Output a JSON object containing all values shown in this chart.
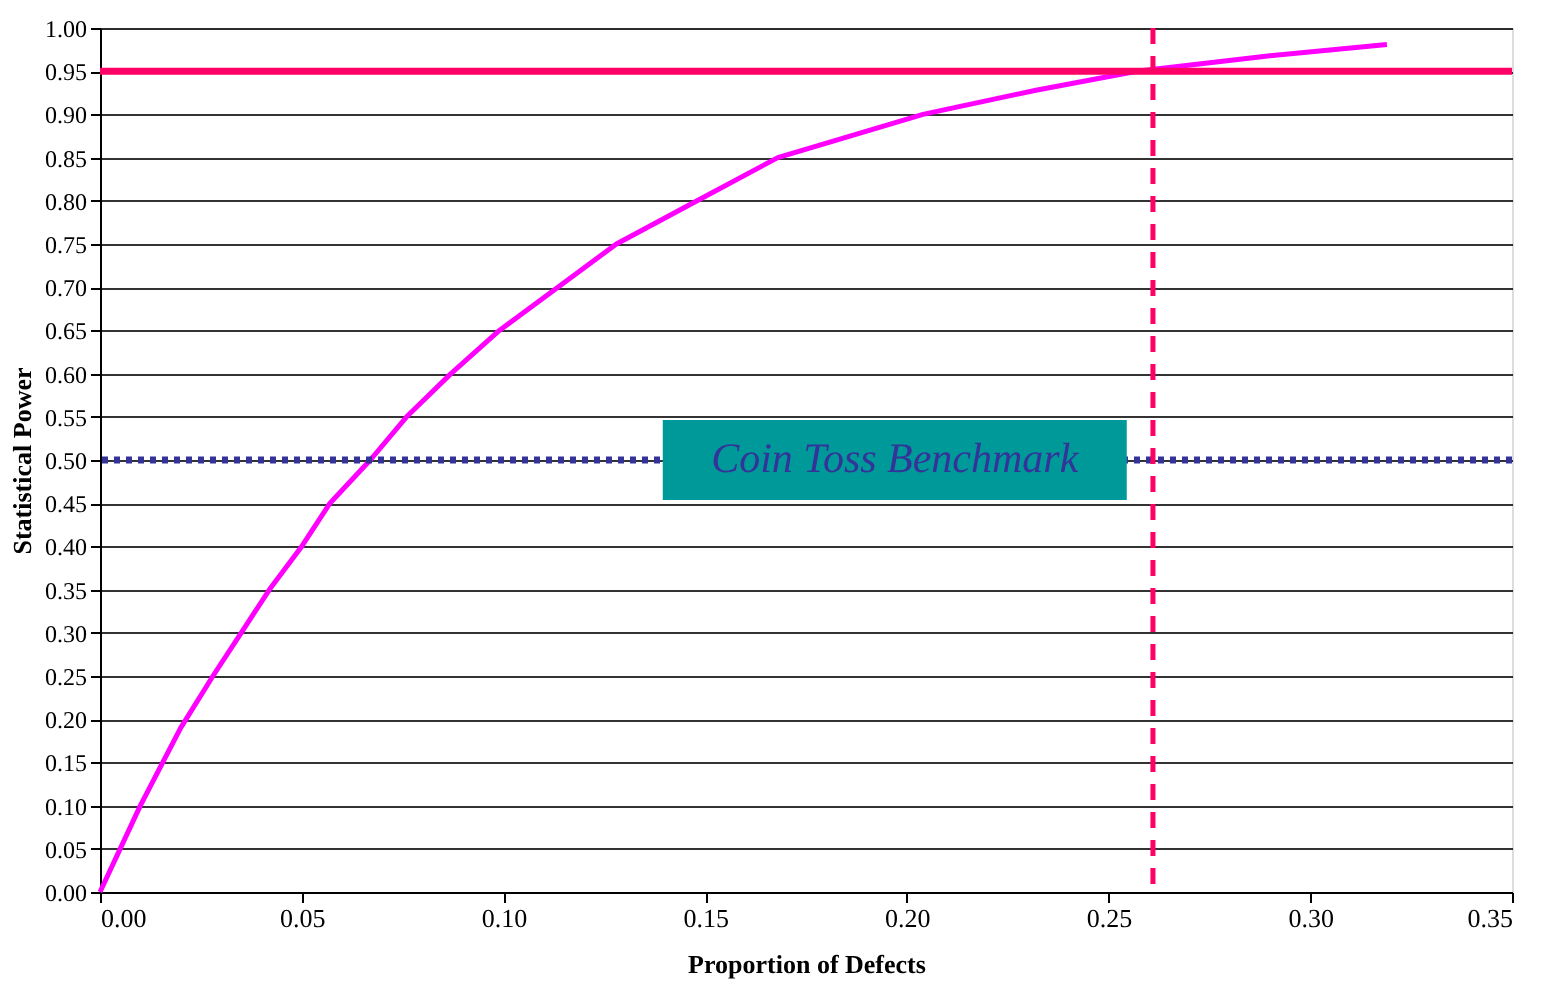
{
  "chart_data": {
    "type": "line",
    "xlabel": "Proportion of Defects",
    "ylabel": "Statistical Power",
    "x": [
      0,
      0.01,
      0.02,
      0.028,
      0.035,
      0.042,
      0.05,
      0.057,
      0.067,
      0.076,
      0.087,
      0.099,
      0.1135,
      0.128,
      0.148,
      0.168,
      0.204,
      0.232,
      0.257,
      0.29,
      0.319
    ],
    "series": [
      {
        "color": "#ff00ff",
        "values": [
          0,
          0.1,
          0.19,
          0.25,
          0.3,
          0.35,
          0.4,
          0.45,
          0.5,
          0.55,
          0.6,
          0.65,
          0.7,
          0.75,
          0.8,
          0.85,
          0.9,
          0.928,
          0.95,
          0.968,
          0.981
        ]
      }
    ],
    "xlim": [
      0,
      0.35
    ],
    "xticks": [
      {
        "value": 0,
        "label": "0.00"
      },
      {
        "value": 0.05,
        "label": "0.05"
      },
      {
        "value": 0.1,
        "label": "0.10"
      },
      {
        "value": 0.15,
        "label": "0.15"
      },
      {
        "value": 0.2,
        "label": "0.20"
      },
      {
        "value": 0.25,
        "label": "0.25"
      },
      {
        "value": 0.3,
        "label": "0.30"
      },
      {
        "value": 0.35,
        "label": "0.35"
      }
    ],
    "ylim": [
      0,
      1
    ],
    "yticks": [
      {
        "value": 0,
        "label": "0.00"
      },
      {
        "value": 0.05,
        "label": "0.05"
      },
      {
        "value": 0.1,
        "label": "0.10"
      },
      {
        "value": 0.15,
        "label": "0.15"
      },
      {
        "value": 0.2,
        "label": "0.20"
      },
      {
        "value": 0.25,
        "label": "0.25"
      },
      {
        "value": 0.3,
        "label": "0.30"
      },
      {
        "value": 0.35,
        "label": "0.35"
      },
      {
        "value": 0.4,
        "label": "0.40"
      },
      {
        "value": 0.45,
        "label": "0.45"
      },
      {
        "value": 0.5,
        "label": "0.50"
      },
      {
        "value": 0.55,
        "label": "0.55"
      },
      {
        "value": 0.6,
        "label": "0.60"
      },
      {
        "value": 0.65,
        "label": "0.65"
      },
      {
        "value": 0.7,
        "label": "0.70"
      },
      {
        "value": 0.75,
        "label": "0.75"
      },
      {
        "value": 0.8,
        "label": "0.80"
      },
      {
        "value": 0.85,
        "label": "0.85"
      },
      {
        "value": 0.9,
        "label": "0.90"
      },
      {
        "value": 0.95,
        "label": "0.95"
      },
      {
        "value": 1,
        "label": "1.00"
      }
    ],
    "grid": "y",
    "ref_lines": [
      {
        "axis": "y",
        "value": 0.95,
        "color": "#ff0066",
        "line_style": "solid"
      },
      {
        "axis": "y",
        "value": 0.5,
        "color": "#333399",
        "line_style": "dotted"
      },
      {
        "axis": "x",
        "value": 0.261,
        "color": "#ff0066",
        "line_style": "dashed"
      }
    ],
    "annotations": [
      {
        "text": "Coin Toss Benchmark",
        "x": 0.197,
        "y": 0.5
      }
    ]
  }
}
